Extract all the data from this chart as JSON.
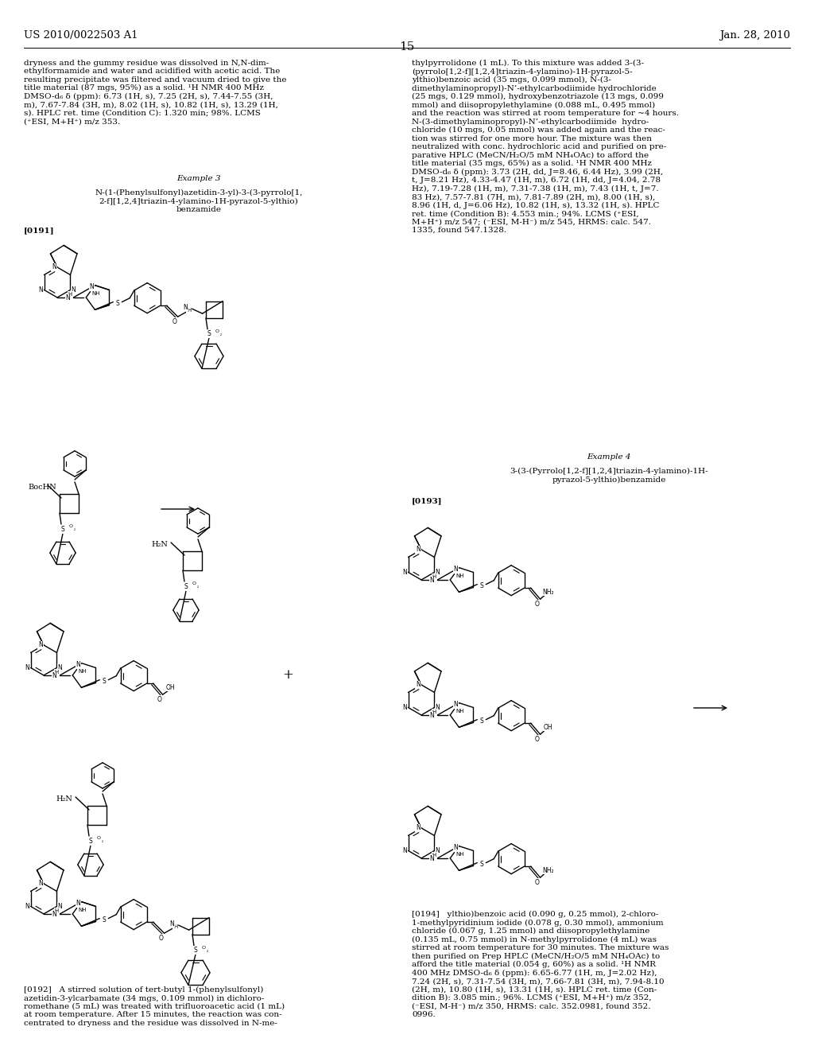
{
  "page_number": "15",
  "patent_number": "US 2010/0022503 A1",
  "patent_date": "Jan. 28, 2010",
  "background_color": "#ffffff",
  "text_color": "#000000",
  "body_fontsize": 7.5,
  "header_fontsize": 9.5
}
